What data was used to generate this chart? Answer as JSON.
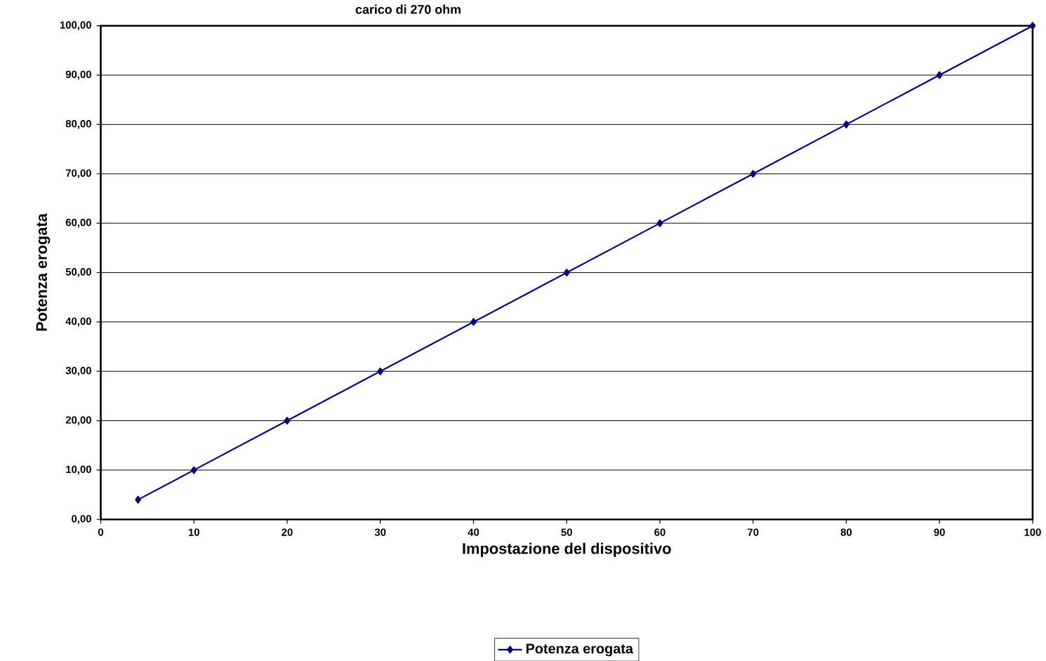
{
  "chart_data": {
    "type": "line",
    "title": "carico di 270 ohm",
    "xlabel": "Impostazione del dispositivo",
    "ylabel": "Potenza erogata",
    "x": [
      4,
      10,
      20,
      30,
      40,
      50,
      60,
      70,
      80,
      90,
      100
    ],
    "series": [
      {
        "name": "Potenza erogata",
        "color": "#000080",
        "values": [
          4,
          10,
          20,
          30,
          40,
          50,
          60,
          70,
          80,
          90,
          100
        ]
      }
    ],
    "xlim": [
      0,
      100
    ],
    "xticks": [
      0,
      10,
      20,
      30,
      40,
      50,
      60,
      70,
      80,
      90,
      100
    ],
    "ylim": [
      0,
      100
    ],
    "yticks": [
      {
        "value": 0,
        "label": "0,00"
      },
      {
        "value": 10,
        "label": "10,00"
      },
      {
        "value": 20,
        "label": "20,00"
      },
      {
        "value": 30,
        "label": "30,00"
      },
      {
        "value": 40,
        "label": "40,00"
      },
      {
        "value": 50,
        "label": "50,00"
      },
      {
        "value": 60,
        "label": "60,00"
      },
      {
        "value": 70,
        "label": "70,00"
      },
      {
        "value": 80,
        "label": "80,00"
      },
      {
        "value": 90,
        "label": "90,00"
      },
      {
        "value": 100,
        "label": "100,00"
      }
    ],
    "grid": "y",
    "legend": "bottom",
    "marker": "diamond",
    "line_style": "solid"
  }
}
